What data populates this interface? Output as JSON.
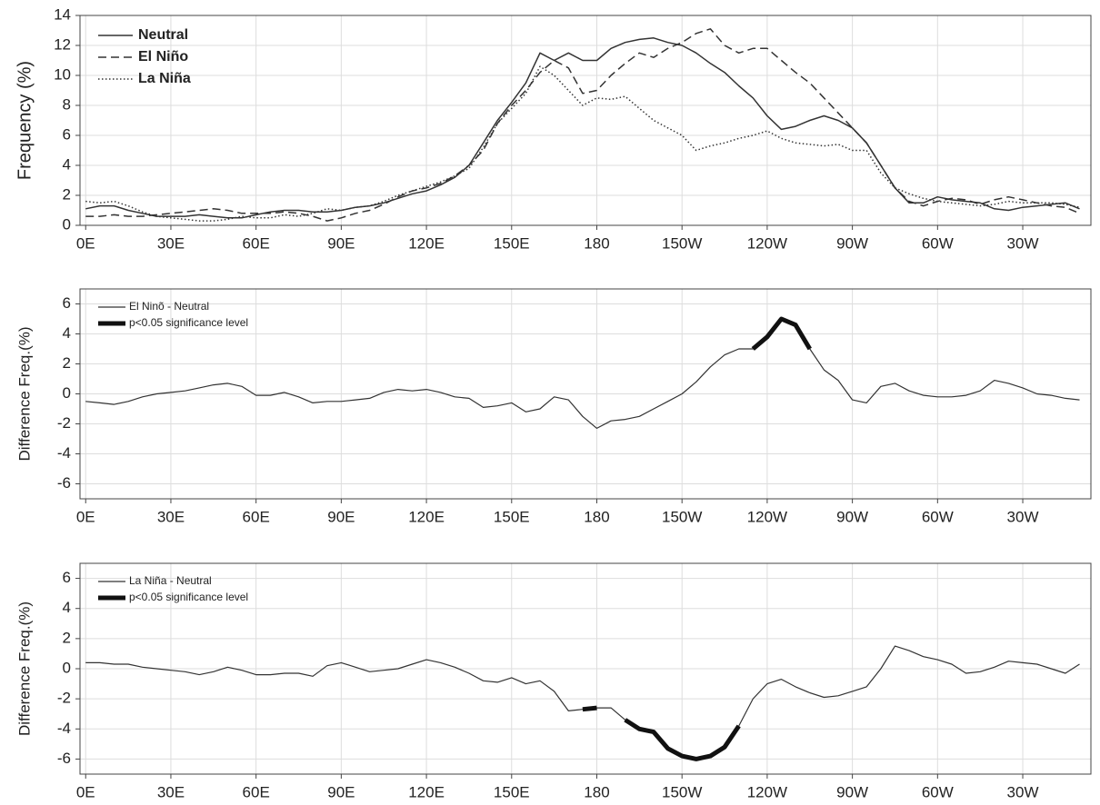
{
  "chart_data": [
    {
      "type": "line",
      "y_label": "Frequency (%)",
      "legend": "upper left",
      "grid": true,
      "xlim": [
        -2,
        354
      ],
      "ylim": [
        0,
        14
      ],
      "yticks": [
        0,
        2,
        4,
        6,
        8,
        10,
        12,
        14
      ],
      "xticks": [
        {
          "value": 0,
          "label": "0E"
        },
        {
          "value": 30,
          "label": "30E"
        },
        {
          "value": 60,
          "label": "60E"
        },
        {
          "value": 90,
          "label": "90E"
        },
        {
          "value": 120,
          "label": "120E"
        },
        {
          "value": 150,
          "label": "150E"
        },
        180,
        {
          "value": 210,
          "label": "150W"
        },
        {
          "value": 240,
          "label": "120W"
        },
        {
          "value": 270,
          "label": "90W"
        },
        {
          "value": 300,
          "label": "60W"
        },
        {
          "value": 330,
          "label": "30W"
        }
      ],
      "x": [
        0,
        5,
        10,
        15,
        20,
        25,
        30,
        35,
        40,
        45,
        50,
        55,
        60,
        65,
        70,
        75,
        80,
        85,
        90,
        95,
        100,
        105,
        110,
        115,
        120,
        125,
        130,
        135,
        140,
        145,
        150,
        155,
        160,
        165,
        170,
        175,
        180,
        185,
        190,
        195,
        200,
        205,
        210,
        215,
        220,
        225,
        230,
        235,
        240,
        245,
        250,
        255,
        260,
        265,
        270,
        275,
        280,
        285,
        290,
        295,
        300,
        305,
        310,
        315,
        320,
        325,
        330,
        335,
        340,
        345,
        350
      ],
      "series": [
        {
          "name": "Neutral",
          "color": "#333333",
          "style": "solid",
          "values": [
            1.1,
            1.3,
            1.3,
            1.0,
            0.8,
            0.6,
            0.6,
            0.6,
            0.7,
            0.6,
            0.5,
            0.5,
            0.7,
            0.9,
            1.0,
            1.0,
            0.9,
            0.9,
            1.0,
            1.2,
            1.3,
            1.5,
            1.8,
            2.1,
            2.3,
            2.7,
            3.2,
            4.0,
            5.5,
            7.0,
            8.2,
            9.5,
            11.5,
            11.0,
            11.5,
            11.0,
            11.0,
            11.8,
            12.2,
            12.4,
            12.5,
            12.2,
            12.0,
            11.5,
            10.8,
            10.2,
            9.3,
            8.5,
            7.3,
            6.4,
            6.6,
            7.0,
            7.3,
            7.0,
            6.5,
            5.5,
            4.0,
            2.5,
            1.5,
            1.5,
            1.9,
            1.7,
            1.6,
            1.5,
            1.1,
            1.0,
            1.2,
            1.3,
            1.4,
            1.5,
            1.1
          ]
        },
        {
          "name": "El Niño",
          "color": "#333333",
          "style": "dashed",
          "values": [
            0.6,
            0.6,
            0.7,
            0.6,
            0.6,
            0.7,
            0.8,
            0.9,
            1.0,
            1.1,
            1.0,
            0.8,
            0.8,
            0.8,
            0.9,
            0.8,
            0.6,
            0.3,
            0.5,
            0.8,
            1.0,
            1.4,
            1.9,
            2.3,
            2.5,
            2.8,
            3.3,
            4.0,
            5.0,
            6.8,
            8.0,
            9.0,
            10.2,
            11.0,
            10.5,
            8.8,
            9.0,
            10.0,
            10.8,
            11.5,
            11.2,
            11.8,
            12.2,
            12.8,
            13.1,
            12.0,
            11.5,
            11.8,
            11.8,
            11.0,
            10.2,
            9.5,
            8.5,
            7.5,
            6.5,
            5.5,
            4.0,
            2.5,
            1.6,
            1.3,
            1.6,
            1.8,
            1.7,
            1.4,
            1.7,
            1.9,
            1.7,
            1.5,
            1.3,
            1.2,
            0.8
          ]
        },
        {
          "name": "La Niña",
          "color": "#333333",
          "style": "dotted",
          "values": [
            1.6,
            1.5,
            1.6,
            1.3,
            0.9,
            0.6,
            0.5,
            0.4,
            0.3,
            0.3,
            0.4,
            0.6,
            0.5,
            0.5,
            0.7,
            0.6,
            0.8,
            1.1,
            1.0,
            1.2,
            1.3,
            1.6,
            2.0,
            2.3,
            2.6,
            2.9,
            3.3,
            3.8,
            5.2,
            6.8,
            7.8,
            8.8,
            10.6,
            10.0,
            9.0,
            8.0,
            8.5,
            8.4,
            8.6,
            7.8,
            7.0,
            6.5,
            6.0,
            5.0,
            5.3,
            5.5,
            5.8,
            6.0,
            6.3,
            5.8,
            5.5,
            5.4,
            5.3,
            5.4,
            5.0,
            5.0,
            3.5,
            2.5,
            2.1,
            1.8,
            1.6,
            1.5,
            1.4,
            1.3,
            1.4,
            1.6,
            1.5,
            1.5,
            1.5,
            1.4,
            1.2
          ]
        }
      ]
    },
    {
      "type": "line",
      "y_label": "Difference Freq.(%)",
      "legend": "upper left",
      "grid": true,
      "xlim": [
        -2,
        354
      ],
      "ylim": [
        -7,
        7
      ],
      "yticks": [
        -6,
        -4,
        -2,
        0,
        2,
        4,
        6
      ],
      "xticks": [
        {
          "value": 0,
          "label": "0E"
        },
        {
          "value": 30,
          "label": "30E"
        },
        {
          "value": 60,
          "label": "60E"
        },
        {
          "value": 90,
          "label": "90E"
        },
        {
          "value": 120,
          "label": "120E"
        },
        {
          "value": 150,
          "label": "150E"
        },
        180,
        {
          "value": 210,
          "label": "150W"
        },
        {
          "value": 240,
          "label": "120W"
        },
        {
          "value": 270,
          "label": "90W"
        },
        {
          "value": 300,
          "label": "60W"
        },
        {
          "value": 330,
          "label": "30W"
        }
      ],
      "x": [
        0,
        5,
        10,
        15,
        20,
        25,
        30,
        35,
        40,
        45,
        50,
        55,
        60,
        65,
        70,
        75,
        80,
        85,
        90,
        95,
        100,
        105,
        110,
        115,
        120,
        125,
        130,
        135,
        140,
        145,
        150,
        155,
        160,
        165,
        170,
        175,
        180,
        185,
        190,
        195,
        200,
        205,
        210,
        215,
        220,
        225,
        230,
        235,
        240,
        245,
        250,
        255,
        260,
        265,
        270,
        275,
        280,
        285,
        290,
        295,
        300,
        305,
        310,
        315,
        320,
        325,
        330,
        335,
        340,
        345,
        350
      ],
      "series": [
        {
          "name": "El Ninõ - Neutral",
          "color": "#333333",
          "style": "thin",
          "values": [
            -0.5,
            -0.6,
            -0.7,
            -0.5,
            -0.2,
            0.0,
            0.1,
            0.2,
            0.4,
            0.6,
            0.7,
            0.5,
            -0.1,
            -0.1,
            0.1,
            -0.2,
            -0.6,
            -0.5,
            -0.5,
            -0.4,
            -0.3,
            0.1,
            0.3,
            0.2,
            0.3,
            0.1,
            -0.2,
            -0.3,
            -0.9,
            -0.8,
            -0.6,
            -1.2,
            -1.0,
            -0.2,
            -0.4,
            -1.5,
            -2.3,
            -1.8,
            -1.7,
            -1.5,
            -1.0,
            -0.5,
            0.0,
            0.8,
            1.8,
            2.6,
            3.0,
            3.0,
            3.8,
            5.0,
            4.6,
            3.0,
            1.6,
            0.9,
            -0.4,
            -0.6,
            0.5,
            0.7,
            0.2,
            -0.1,
            -0.2,
            -0.2,
            -0.1,
            0.2,
            0.9,
            0.7,
            0.4,
            0.0,
            -0.1,
            -0.3,
            -0.4
          ]
        },
        {
          "name": "p<0.05 significance level",
          "color": "#111111",
          "style": "thick",
          "values": [
            null,
            null,
            null,
            null,
            null,
            null,
            null,
            null,
            null,
            null,
            null,
            null,
            null,
            null,
            null,
            null,
            null,
            null,
            null,
            null,
            null,
            null,
            null,
            null,
            null,
            null,
            null,
            null,
            null,
            null,
            null,
            null,
            null,
            null,
            null,
            null,
            null,
            null,
            null,
            null,
            null,
            null,
            null,
            null,
            null,
            null,
            null,
            3.0,
            3.8,
            5.0,
            4.6,
            3.0,
            null,
            null,
            null,
            null,
            null,
            null,
            null,
            null,
            null,
            null,
            null,
            null,
            null,
            null,
            null,
            null,
            null,
            null,
            null
          ]
        }
      ]
    },
    {
      "type": "line",
      "y_label": "Difference Freq.(%)",
      "legend": "upper left",
      "grid": true,
      "xlim": [
        -2,
        354
      ],
      "ylim": [
        -7,
        7
      ],
      "yticks": [
        -6,
        -4,
        -2,
        0,
        2,
        4,
        6
      ],
      "xticks": [
        {
          "value": 0,
          "label": "0E"
        },
        {
          "value": 30,
          "label": "30E"
        },
        {
          "value": 60,
          "label": "60E"
        },
        {
          "value": 90,
          "label": "90E"
        },
        {
          "value": 120,
          "label": "120E"
        },
        {
          "value": 150,
          "label": "150E"
        },
        180,
        {
          "value": 210,
          "label": "150W"
        },
        {
          "value": 240,
          "label": "120W"
        },
        {
          "value": 270,
          "label": "90W"
        },
        {
          "value": 300,
          "label": "60W"
        },
        {
          "value": 330,
          "label": "30W"
        }
      ],
      "x": [
        0,
        5,
        10,
        15,
        20,
        25,
        30,
        35,
        40,
        45,
        50,
        55,
        60,
        65,
        70,
        75,
        80,
        85,
        90,
        95,
        100,
        105,
        110,
        115,
        120,
        125,
        130,
        135,
        140,
        145,
        150,
        155,
        160,
        165,
        170,
        175,
        180,
        185,
        190,
        195,
        200,
        205,
        210,
        215,
        220,
        225,
        230,
        235,
        240,
        245,
        250,
        255,
        260,
        265,
        270,
        275,
        280,
        285,
        290,
        295,
        300,
        305,
        310,
        315,
        320,
        325,
        330,
        335,
        340,
        345,
        350
      ],
      "series": [
        {
          "name": "La Niña - Neutral",
          "color": "#333333",
          "style": "thin",
          "values": [
            0.4,
            0.4,
            0.3,
            0.3,
            0.1,
            0.0,
            -0.1,
            -0.2,
            -0.4,
            -0.2,
            0.1,
            -0.1,
            -0.4,
            -0.4,
            -0.3,
            -0.3,
            -0.5,
            0.2,
            0.4,
            0.1,
            -0.2,
            -0.1,
            0.0,
            0.3,
            0.6,
            0.4,
            0.1,
            -0.3,
            -0.8,
            -0.9,
            -0.6,
            -1.0,
            -0.8,
            -1.5,
            -2.8,
            -2.7,
            -2.6,
            -2.6,
            -3.4,
            -4.0,
            -4.2,
            -5.3,
            -5.8,
            -6.0,
            -5.8,
            -5.2,
            -3.8,
            -2.0,
            -1.0,
            -0.7,
            -1.2,
            -1.6,
            -1.9,
            -1.8,
            -1.5,
            -1.2,
            0.0,
            1.5,
            1.2,
            0.8,
            0.6,
            0.3,
            -0.3,
            -0.2,
            0.1,
            0.5,
            0.4,
            0.3,
            0.0,
            -0.3,
            0.3
          ]
        },
        {
          "name": "p<0.05 significance level",
          "color": "#111111",
          "style": "thick",
          "values": [
            null,
            null,
            null,
            null,
            null,
            null,
            null,
            null,
            null,
            null,
            null,
            null,
            null,
            null,
            null,
            null,
            null,
            null,
            null,
            null,
            null,
            null,
            null,
            null,
            null,
            null,
            null,
            null,
            null,
            null,
            null,
            null,
            null,
            null,
            null,
            -2.7,
            -2.6,
            null,
            -3.4,
            -4.0,
            -4.2,
            -5.3,
            -5.8,
            -6.0,
            -5.8,
            -5.2,
            -3.8,
            null,
            null,
            null,
            null,
            null,
            null,
            null,
            null,
            null,
            null,
            null,
            null,
            null,
            null,
            null,
            null,
            null,
            null,
            null,
            null,
            null,
            null,
            null,
            null
          ]
        }
      ]
    }
  ]
}
